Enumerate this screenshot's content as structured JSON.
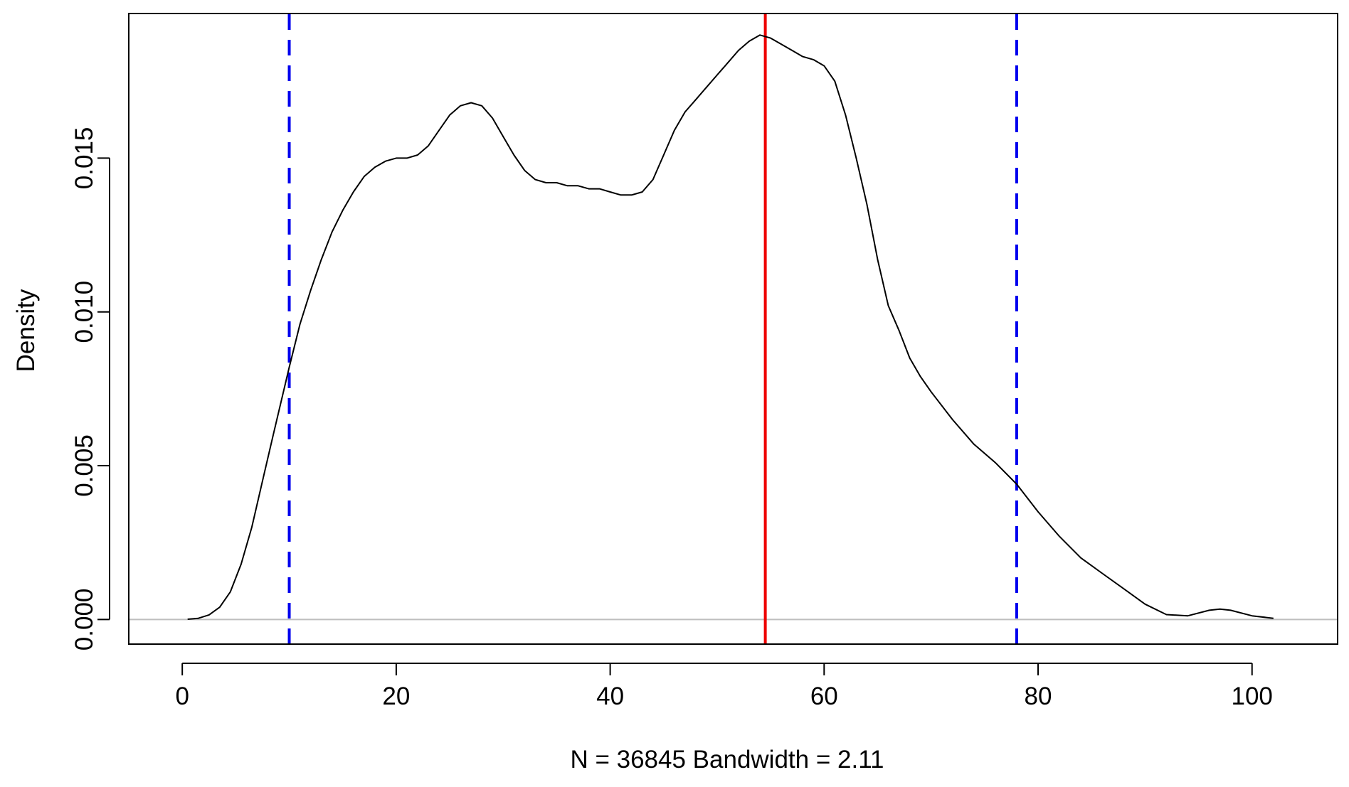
{
  "chart_data": {
    "type": "line",
    "title": "",
    "xlabel": "N = 36845   Bandwidth = 2.11",
    "ylabel": "Density",
    "xlim": [
      -5,
      108
    ],
    "ylim": [
      -0.0008,
      0.0197
    ],
    "x_ticks": [
      0,
      20,
      40,
      60,
      80,
      100
    ],
    "x_tick_labels": [
      "0",
      "20",
      "40",
      "60",
      "80",
      "100"
    ],
    "y_ticks": [
      0.0,
      0.005,
      0.01,
      0.015
    ],
    "y_tick_labels": [
      "0.000",
      "0.005",
      "0.010",
      "0.015"
    ],
    "grid": false,
    "baseline": {
      "y": 0,
      "color": "#bebebe"
    },
    "series": [
      {
        "color": "#000000",
        "x": [
          0.5,
          1.5,
          2.5,
          3.5,
          4.5,
          5.5,
          6.5,
          7.5,
          8.5,
          10,
          11,
          12,
          13,
          14,
          15,
          16,
          17,
          18,
          19,
          20,
          21,
          22,
          23,
          24,
          25,
          26,
          27,
          28,
          29,
          30,
          31,
          32,
          33,
          34,
          35,
          36,
          37,
          38,
          39,
          40,
          41,
          42,
          43,
          44,
          45,
          46,
          47,
          48,
          49,
          50,
          51,
          52,
          53,
          54,
          55,
          56,
          57,
          58,
          59,
          60,
          61,
          62,
          63,
          64,
          65,
          66,
          67,
          68,
          69,
          70,
          72,
          74,
          76,
          78,
          80,
          82,
          84,
          86,
          88,
          90,
          92,
          94,
          96,
          97,
          98,
          100,
          102
        ],
        "y": [
          1e-05,
          4e-05,
          0.00015,
          0.0004,
          0.0009,
          0.0018,
          0.003,
          0.0045,
          0.006,
          0.0082,
          0.0096,
          0.0107,
          0.0117,
          0.0126,
          0.0133,
          0.0139,
          0.0144,
          0.0147,
          0.0149,
          0.015,
          0.015,
          0.0151,
          0.0154,
          0.0159,
          0.0164,
          0.0167,
          0.0168,
          0.0167,
          0.0163,
          0.0157,
          0.0151,
          0.0146,
          0.0143,
          0.0142,
          0.0142,
          0.0141,
          0.0141,
          0.014,
          0.014,
          0.0139,
          0.0138,
          0.0138,
          0.0139,
          0.0143,
          0.0151,
          0.0159,
          0.0165,
          0.0169,
          0.0173,
          0.0177,
          0.0181,
          0.0185,
          0.0188,
          0.019,
          0.0189,
          0.0187,
          0.0185,
          0.0183,
          0.0182,
          0.018,
          0.0175,
          0.0164,
          0.015,
          0.0135,
          0.0117,
          0.0102,
          0.0094,
          0.0085,
          0.0079,
          0.0074,
          0.0065,
          0.0057,
          0.0051,
          0.0044,
          0.0035,
          0.0027,
          0.002,
          0.0015,
          0.001,
          0.0005,
          0.00016,
          0.00012,
          0.0003,
          0.00034,
          0.0003,
          0.00012,
          4e-05
        ]
      }
    ],
    "vlines": [
      {
        "x": 10.0,
        "color": "#0000ee",
        "style": "dashed"
      },
      {
        "x": 54.5,
        "color": "#ee0000",
        "style": "solid"
      },
      {
        "x": 78.0,
        "color": "#0000ee",
        "style": "dashed"
      }
    ]
  }
}
